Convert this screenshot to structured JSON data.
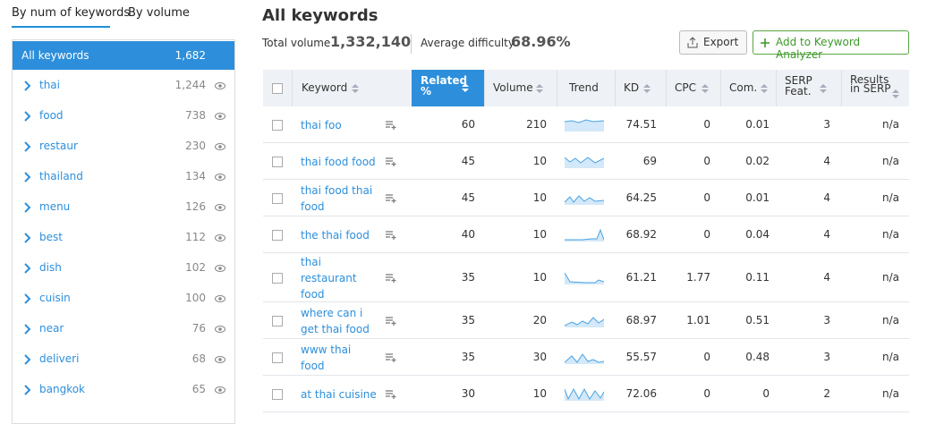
{
  "tabs": [
    "By num of keywords",
    "By volume"
  ],
  "sidebar": {
    "selected": {
      "label": "All keywords",
      "count": "1,682"
    },
    "items": [
      {
        "label": "thai",
        "count": "1,244"
      },
      {
        "label": "food",
        "count": "738"
      },
      {
        "label": "restaur",
        "count": "230"
      },
      {
        "label": "thailand",
        "count": "134"
      },
      {
        "label": "menu",
        "count": "126"
      },
      {
        "label": "best",
        "count": "112"
      },
      {
        "label": "dish",
        "count": "102"
      },
      {
        "label": "cuisin",
        "count": "100"
      },
      {
        "label": "near",
        "count": "76"
      },
      {
        "label": "deliveri",
        "count": "68"
      },
      {
        "label": "bangkok",
        "count": "65"
      }
    ]
  },
  "header": {
    "title": "All keywords",
    "total_volume_label": "Total volume",
    "total_volume": "1,332,140",
    "avg_difficulty_label": "Average difficulty",
    "avg_difficulty": "68.96%",
    "export_button": "Export",
    "add_button": "Add to Keyword Analyzer"
  },
  "table": {
    "columns": [
      "Keyword",
      "Related %",
      "Volume",
      "Trend",
      "KD",
      "CPC",
      "Com.",
      "SERP Feat.",
      "Results in SERP"
    ],
    "rows": [
      [
        "thai foo",
        "60",
        "210",
        "74.51",
        "0",
        "0.01",
        "3",
        "n/a"
      ],
      [
        "thai food food",
        "45",
        "10",
        "69",
        "0",
        "0.02",
        "4",
        "n/a"
      ],
      [
        "thai food thai food",
        "45",
        "10",
        "64.25",
        "0",
        "0.01",
        "4",
        "n/a"
      ],
      [
        "the thai food",
        "40",
        "10",
        "68.92",
        "0",
        "0.04",
        "4",
        "n/a"
      ],
      [
        "thai restaurant food",
        "35",
        "10",
        "61.21",
        "1.77",
        "0.11",
        "4",
        "n/a"
      ],
      [
        "where can i get thai food",
        "35",
        "20",
        "68.97",
        "1.01",
        "0.51",
        "3",
        "n/a"
      ],
      [
        "www thai food",
        "35",
        "30",
        "55.57",
        "0",
        "0.48",
        "3",
        "n/a"
      ],
      [
        "at thai cuisine",
        "30",
        "10",
        "72.06",
        "0",
        "0",
        "2",
        "n/a"
      ]
    ]
  }
}
